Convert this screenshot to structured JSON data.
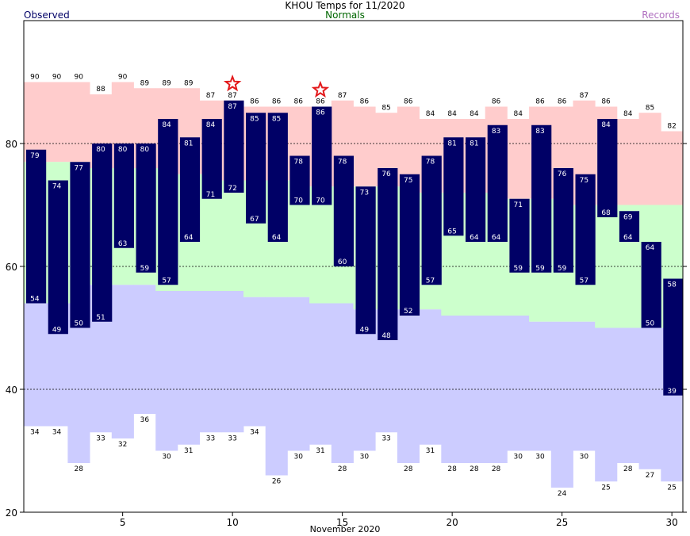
{
  "header": {
    "title": "KHOU Temps for 11/2020",
    "observed_label": "Observed",
    "normals_label": "Normals",
    "records_label": "Records"
  },
  "colors": {
    "observed": "#000066",
    "normals_text": "#006600",
    "records_text": "#b070c0",
    "record_band": "#ffcccc",
    "normal_band": "#ccffcc",
    "low_band": "#ccccff",
    "star": "#e31a1c"
  },
  "chart_data": {
    "type": "bar",
    "title": "KHOU Temps for 11/2020",
    "xlabel": "November 2020",
    "ylabel": "",
    "ylim": [
      20,
      100
    ],
    "yticks": [
      20,
      40,
      60,
      80
    ],
    "xticks": [
      5,
      10,
      15,
      20,
      25,
      30
    ],
    "grid": "dashed horizontal at 40, 60, 80",
    "days": [
      1,
      2,
      3,
      4,
      5,
      6,
      7,
      8,
      9,
      10,
      11,
      12,
      13,
      14,
      15,
      16,
      17,
      18,
      19,
      20,
      21,
      22,
      23,
      24,
      25,
      26,
      27,
      28,
      29,
      30
    ],
    "record_high": [
      90,
      90,
      90,
      88,
      90,
      89,
      89,
      89,
      87,
      87,
      86,
      86,
      86,
      86,
      87,
      86,
      85,
      86,
      84,
      84,
      84,
      86,
      84,
      86,
      86,
      87,
      86,
      84,
      85,
      82
    ],
    "normal_high": [
      77,
      77,
      77,
      76,
      76,
      76,
      76,
      75,
      75,
      74,
      74,
      74,
      74,
      73,
      73,
      73,
      73,
      73,
      72,
      72,
      72,
      72,
      71,
      71,
      71,
      70,
      70,
      70,
      70,
      70
    ],
    "normal_low": [
      54,
      54,
      54,
      57,
      57,
      57,
      56,
      56,
      56,
      56,
      55,
      55,
      55,
      54,
      54,
      53,
      53,
      53,
      53,
      52,
      52,
      52,
      52,
      51,
      51,
      51,
      50,
      50,
      50,
      50
    ],
    "record_low": [
      34,
      34,
      28,
      33,
      32,
      36,
      30,
      31,
      33,
      33,
      34,
      26,
      30,
      31,
      28,
      30,
      33,
      28,
      31,
      28,
      28,
      28,
      30,
      30,
      24,
      30,
      25,
      28,
      27,
      25
    ],
    "observed_high": [
      79,
      74,
      77,
      80,
      80,
      80,
      84,
      81,
      84,
      87,
      85,
      85,
      78,
      86,
      78,
      73,
      76,
      75,
      78,
      81,
      81,
      83,
      71,
      83,
      76,
      75,
      84,
      69,
      64,
      58
    ],
    "observed_low": [
      54,
      49,
      50,
      51,
      63,
      59,
      57,
      64,
      71,
      72,
      67,
      64,
      70,
      70,
      60,
      49,
      48,
      52,
      57,
      65,
      64,
      64,
      59,
      59,
      59,
      57,
      68,
      64,
      50,
      39
    ],
    "record_high_set": [
      10,
      14
    ]
  }
}
